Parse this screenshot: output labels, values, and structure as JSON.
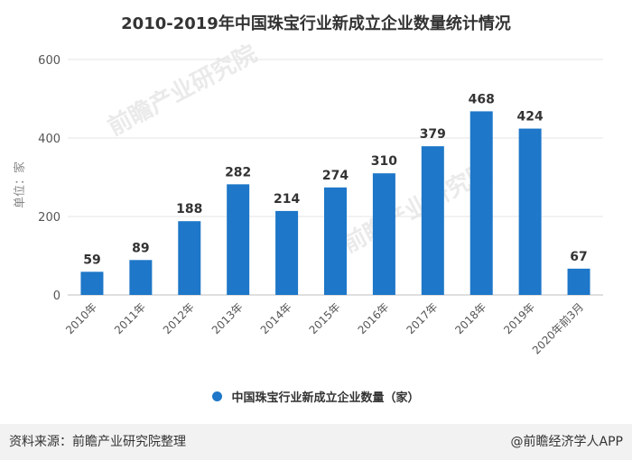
{
  "chart_data": {
    "type": "bar",
    "title": "2010-2019年中国珠宝行业新成立企业数量统计情况",
    "ylabel": "单位：家",
    "xlabel": "",
    "ylim": [
      0,
      600
    ],
    "yticks": [
      0,
      200,
      400,
      600
    ],
    "categories": [
      "2010年",
      "2011年",
      "2012年",
      "2013年",
      "2014年",
      "2015年",
      "2016年",
      "2017年",
      "2018年",
      "2019年",
      "2020年前3月"
    ],
    "series": [
      {
        "name": "中国珠宝行业新成立企业数量（家）",
        "values": [
          59,
          89,
          188,
          282,
          214,
          274,
          310,
          379,
          468,
          424,
          67
        ]
      }
    ],
    "grid": true,
    "legend": "bottom",
    "bar_color": "#1e77c8"
  },
  "footer": {
    "source": "资料来源：前瞻产业研究院整理",
    "credit": "@前瞻经济学人APP"
  },
  "watermark": {
    "text": "前瞻产业研究院"
  }
}
